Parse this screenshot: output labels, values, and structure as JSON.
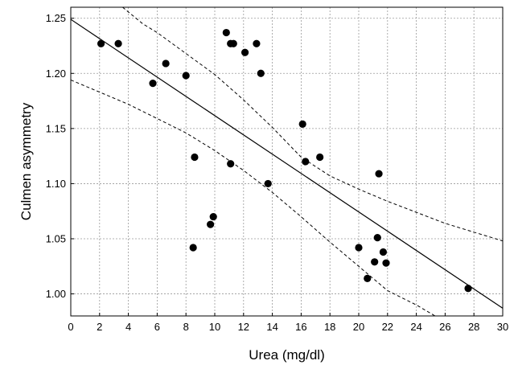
{
  "chart_data": {
    "type": "scatter",
    "title": "",
    "xlabel": "Urea (mg/dl)",
    "ylabel": "Culmen asymmetry",
    "xlim": [
      0,
      30
    ],
    "ylim": [
      0.98,
      1.26
    ],
    "x_ticks": [
      0,
      2,
      4,
      6,
      8,
      10,
      12,
      14,
      16,
      18,
      20,
      22,
      24,
      26,
      28,
      30
    ],
    "y_ticks": [
      1.0,
      1.05,
      1.1,
      1.15,
      1.2,
      1.25
    ],
    "grid": true,
    "legend": "none",
    "points": [
      {
        "x": 2.1,
        "y": 1.227
      },
      {
        "x": 3.3,
        "y": 1.227
      },
      {
        "x": 5.7,
        "y": 1.191
      },
      {
        "x": 6.6,
        "y": 1.209
      },
      {
        "x": 8.0,
        "y": 1.198
      },
      {
        "x": 8.6,
        "y": 1.124
      },
      {
        "x": 8.5,
        "y": 1.042
      },
      {
        "x": 9.7,
        "y": 1.063
      },
      {
        "x": 9.9,
        "y": 1.07
      },
      {
        "x": 10.8,
        "y": 1.237
      },
      {
        "x": 11.1,
        "y": 1.227
      },
      {
        "x": 11.3,
        "y": 1.227
      },
      {
        "x": 11.1,
        "y": 1.118
      },
      {
        "x": 12.1,
        "y": 1.219
      },
      {
        "x": 12.9,
        "y": 1.227
      },
      {
        "x": 13.2,
        "y": 1.2
      },
      {
        "x": 13.7,
        "y": 1.1
      },
      {
        "x": 16.1,
        "y": 1.154
      },
      {
        "x": 16.3,
        "y": 1.12
      },
      {
        "x": 17.3,
        "y": 1.124
      },
      {
        "x": 20.0,
        "y": 1.042
      },
      {
        "x": 20.6,
        "y": 1.014
      },
      {
        "x": 21.1,
        "y": 1.029
      },
      {
        "x": 21.3,
        "y": 1.051
      },
      {
        "x": 21.4,
        "y": 1.109
      },
      {
        "x": 21.7,
        "y": 1.038
      },
      {
        "x": 21.9,
        "y": 1.028
      },
      {
        "x": 27.6,
        "y": 1.005
      }
    ],
    "fit_line": {
      "x": [
        0,
        30
      ],
      "y": [
        1.249,
        0.987
      ]
    },
    "ci_upper": {
      "x": [
        3.6,
        5,
        6,
        8,
        10,
        12,
        14,
        16,
        18,
        20,
        22,
        24,
        26,
        28,
        30
      ],
      "y": [
        1.26,
        1.245,
        1.237,
        1.218,
        1.199,
        1.176,
        1.151,
        1.124,
        1.107,
        1.095,
        1.084,
        1.074,
        1.064,
        1.056,
        1.048
      ]
    },
    "ci_lower": {
      "x": [
        0,
        2,
        4,
        6,
        8,
        10,
        12,
        14,
        16,
        18,
        20,
        22,
        24,
        25.3
      ],
      "y": [
        1.194,
        1.183,
        1.172,
        1.159,
        1.146,
        1.13,
        1.112,
        1.092,
        1.07,
        1.047,
        1.025,
        1.003,
        0.99,
        0.98
      ]
    },
    "colors": {
      "points": "#000000",
      "lines": "#000000",
      "grid": "#9a9a9a"
    }
  }
}
